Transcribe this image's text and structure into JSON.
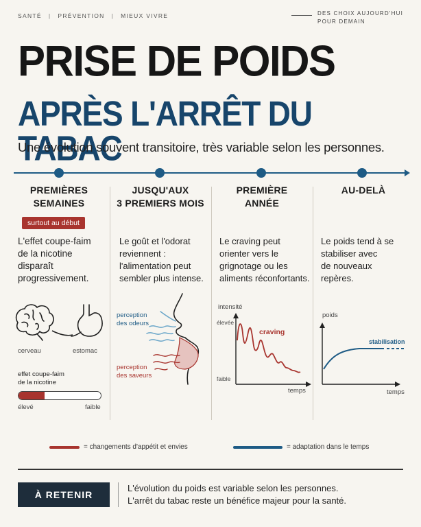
{
  "nav": {
    "items": [
      "SANTÉ",
      "PRÉVENTION",
      "MIEUX VIVRE"
    ],
    "separator": "|"
  },
  "tagline": {
    "line1": "DES CHOIX AUJOURD'HUI",
    "line2": "POUR DEMAIN"
  },
  "title": {
    "line1": "PRISE DE POIDS",
    "line2": "APRÈS L'ARRÊT DU TABAC"
  },
  "subtitle": "Une évolution souvent transitoire, très variable selon les personnes.",
  "columns": [
    {
      "title_l1": "PREMIÈRES",
      "title_l2": "SEMAINES",
      "badge": "surtout au début",
      "text": [
        "L'effet coupe-faim",
        "de la nicotine",
        "disparaît",
        "progressivement."
      ],
      "labels": {
        "brain": "cerveau",
        "stomach": "estomac",
        "gauge_title_l1": "effet coupe-faim",
        "gauge_title_l2": "de la nicotine",
        "gauge_high": "élevé",
        "gauge_low": "faible"
      },
      "gauge_level": 0.32
    },
    {
      "title_l1": "JUSQU'AUX",
      "title_l2": "3 PREMIERS MOIS",
      "text": [
        "Le goût et l'odorat",
        "reviennent :",
        "l'alimentation peut",
        "sembler plus intense."
      ],
      "labels": {
        "smell_l1": "perception",
        "smell_l2": "des odeurs",
        "taste_l1": "perception",
        "taste_l2": "des saveurs"
      }
    },
    {
      "title_l1": "PREMIÈRE",
      "title_l2": "ANNÉE",
      "text": [
        "Le craving peut",
        "orienter vers le",
        "grignotage ou les",
        "aliments réconfortants."
      ],
      "labels": {
        "y_axis": "intensité",
        "high": "élevée",
        "low": "faible",
        "x_axis": "temps",
        "series": "craving"
      }
    },
    {
      "title_l1": "AU-DELÀ",
      "title_l2": "",
      "text": [
        "Le poids tend à se",
        "stabiliser avec",
        "de nouveaux",
        "repères."
      ],
      "labels": {
        "y_axis": "poids",
        "x_axis": "temps",
        "series": "stabilisation"
      }
    }
  ],
  "legend": [
    {
      "text": "= changements d'appétit et envies",
      "color": "#a8342e"
    },
    {
      "text": "= adaptation dans le temps",
      "color": "#1e5b85"
    }
  ],
  "retenir": {
    "label": "À RETENIR",
    "line1": "L'évolution du poids est variable selon les personnes.",
    "line2": "L'arrêt du tabac reste un bénéfice majeur pour la santé."
  },
  "colors": {
    "accent_red": "#a8342e",
    "accent_blue": "#1e5b85",
    "title_blue": "#17456b",
    "dark": "#1e2d3b"
  }
}
